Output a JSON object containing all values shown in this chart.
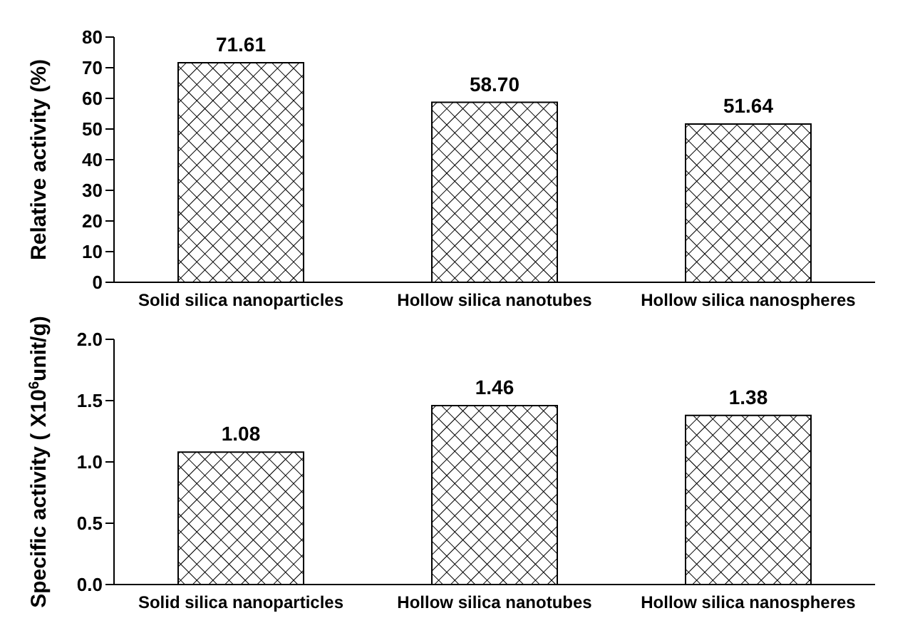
{
  "chart_data": [
    {
      "type": "bar",
      "ylabel": "Relative activity (%)",
      "categories": [
        "Solid silica nanoparticles",
        "Hollow silica nanotubes",
        "Hollow silica nanospheres"
      ],
      "values": [
        71.61,
        58.7,
        51.64
      ],
      "value_labels": [
        "71.61",
        "58.70",
        "51.64"
      ],
      "color": "#000000",
      "ylim": [
        0,
        80
      ],
      "yticks": [
        0,
        10,
        20,
        30,
        40,
        50,
        60,
        70,
        80
      ],
      "grid": false,
      "legend": false
    },
    {
      "type": "bar",
      "ylabel": "Specific activity ( X10$^{6}$unit/g)",
      "categories": [
        "Solid silica nanoparticles",
        "Hollow silica nanotubes",
        "Hollow silica nanospheres"
      ],
      "values": [
        1.08,
        1.46,
        1.38
      ],
      "value_labels": [
        "1.08",
        "1.46",
        "1.38"
      ],
      "color": "#000000",
      "ylim": [
        0,
        2.0
      ],
      "yticks": [
        {
          "value": 0,
          "label": "0.0"
        },
        {
          "value": 0.5,
          "label": "0.5"
        },
        {
          "value": 1.0,
          "label": "1.0"
        },
        {
          "value": 1.5,
          "label": "1.5"
        },
        {
          "value": 2.0,
          "label": "2.0"
        }
      ],
      "grid": false,
      "legend": false
    }
  ]
}
